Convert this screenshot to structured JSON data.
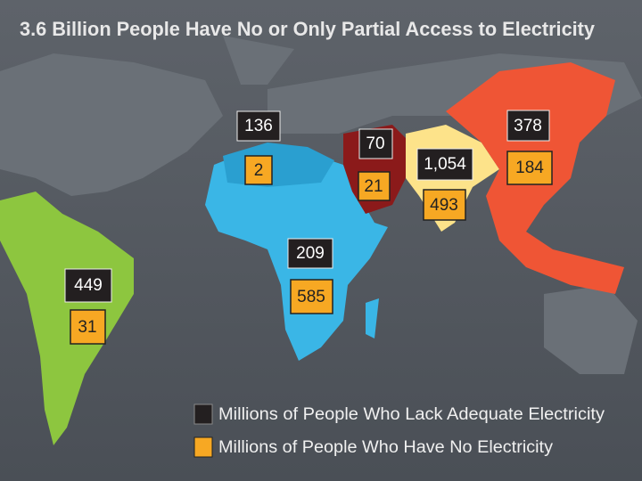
{
  "title": "3.6 Billion People Have No or Only Partial Access to Electricity",
  "regions": [
    {
      "lack": "136",
      "none": "2"
    },
    {
      "lack": "70",
      "none": "21"
    },
    {
      "lack": "1,054",
      "none": "493"
    },
    {
      "lack": "378",
      "none": "184"
    },
    {
      "lack": "209",
      "none": "585"
    },
    {
      "lack": "449",
      "none": "31"
    }
  ],
  "legend": {
    "lack": "Millions of People Who Lack Adequate Electricity",
    "none": "Millions of People Who Have No Electricity"
  }
}
